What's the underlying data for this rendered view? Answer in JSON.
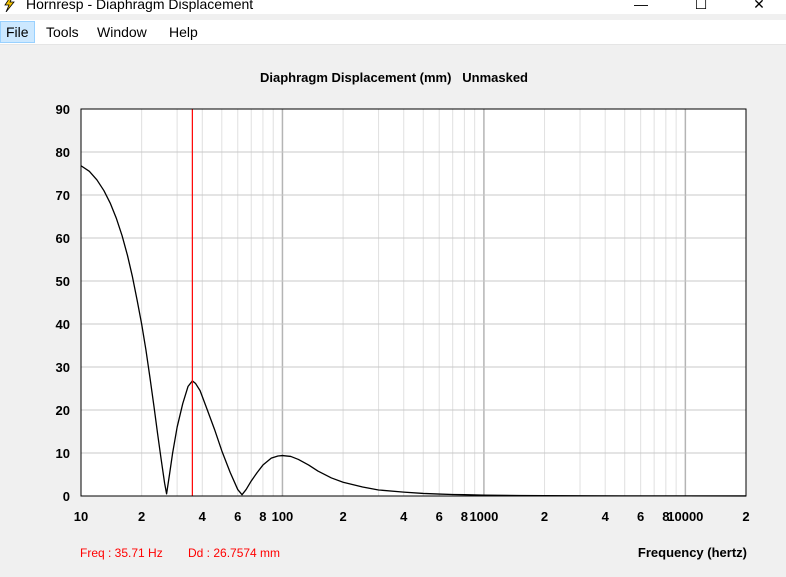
{
  "window": {
    "title": "Hornresp - Diaphragm Displacement",
    "minimize_glyph": "—",
    "maximize_glyph": "☐",
    "close_glyph": "✕",
    "icon": "lightning-icon"
  },
  "menu": {
    "items": [
      {
        "label": "File"
      },
      {
        "label": "Tools"
      },
      {
        "label": "Window"
      },
      {
        "label": "Help"
      }
    ]
  },
  "chart_data": {
    "type": "line",
    "title": "Diaphragm Displacement (mm)   Unmasked",
    "xlabel": "Frequency (hertz)",
    "ylabel": "",
    "x_scale": "log",
    "xlim": [
      10,
      20000
    ],
    "ylim": [
      0,
      90
    ],
    "y_ticks": [
      0,
      10,
      20,
      30,
      40,
      50,
      60,
      70,
      80,
      90
    ],
    "x_tick_labels": [
      {
        "x": 10,
        "label": "10"
      },
      {
        "x": 20,
        "label": "2"
      },
      {
        "x": 40,
        "label": "4"
      },
      {
        "x": 60,
        "label": "6"
      },
      {
        "x": 80,
        "label": "8"
      },
      {
        "x": 100,
        "label": "100"
      },
      {
        "x": 200,
        "label": "2"
      },
      {
        "x": 400,
        "label": "4"
      },
      {
        "x": 600,
        "label": "6"
      },
      {
        "x": 800,
        "label": "8"
      },
      {
        "x": 1000,
        "label": "1000"
      },
      {
        "x": 2000,
        "label": "2"
      },
      {
        "x": 4000,
        "label": "4"
      },
      {
        "x": 6000,
        "label": "6"
      },
      {
        "x": 8000,
        "label": "8"
      },
      {
        "x": 10000,
        "label": "10000"
      },
      {
        "x": 20000,
        "label": "2"
      }
    ],
    "grid": true,
    "cursor": {
      "x": 35.71,
      "color": "#ff0000"
    },
    "series": [
      {
        "color": "#000000",
        "points": [
          [
            10,
            76.8
          ],
          [
            11,
            75.5
          ],
          [
            12,
            73.5
          ],
          [
            13,
            71
          ],
          [
            14,
            68
          ],
          [
            15,
            64.5
          ],
          [
            16,
            60.5
          ],
          [
            17,
            56
          ],
          [
            18,
            51
          ],
          [
            19,
            45.5
          ],
          [
            20,
            40
          ],
          [
            21,
            34
          ],
          [
            22,
            27.5
          ],
          [
            23,
            21
          ],
          [
            24,
            14.5
          ],
          [
            25,
            8.5
          ],
          [
            26,
            3
          ],
          [
            26.6,
            0.5
          ],
          [
            27.5,
            5
          ],
          [
            28.5,
            10
          ],
          [
            30,
            16
          ],
          [
            32,
            21.5
          ],
          [
            34,
            25.5
          ],
          [
            35.71,
            26.76
          ],
          [
            37,
            26.2
          ],
          [
            39,
            24.5
          ],
          [
            42,
            20.5
          ],
          [
            46,
            15.5
          ],
          [
            50,
            10.5
          ],
          [
            55,
            5.5
          ],
          [
            60,
            1.5
          ],
          [
            63,
            0.3
          ],
          [
            66,
            1.5
          ],
          [
            70,
            3.5
          ],
          [
            75,
            5.5
          ],
          [
            80,
            7.2
          ],
          [
            88,
            8.8
          ],
          [
            95,
            9.3
          ],
          [
            100,
            9.4
          ],
          [
            110,
            9.2
          ],
          [
            120,
            8.5
          ],
          [
            135,
            7.2
          ],
          [
            150,
            5.8
          ],
          [
            175,
            4.2
          ],
          [
            200,
            3.2
          ],
          [
            250,
            2.1
          ],
          [
            300,
            1.4
          ],
          [
            400,
            0.9
          ],
          [
            500,
            0.6
          ],
          [
            600,
            0.45
          ],
          [
            700,
            0.35
          ],
          [
            800,
            0.3
          ],
          [
            1000,
            0.2
          ],
          [
            1500,
            0.12
          ],
          [
            2000,
            0.08
          ],
          [
            3000,
            0.05
          ],
          [
            5000,
            0.03
          ],
          [
            10000,
            0.02
          ],
          [
            20000,
            0.01
          ]
        ]
      }
    ]
  },
  "status": {
    "freq": "Freq : 35.71 Hz",
    "dd": "Dd : 26.7574 mm"
  }
}
